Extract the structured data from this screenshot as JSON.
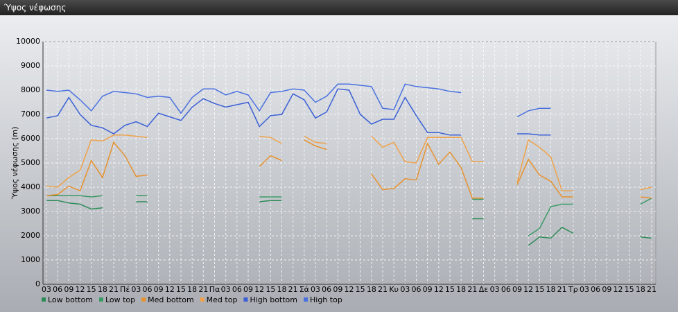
{
  "chart_data": {
    "type": "line",
    "title": "Ύψος νέφωσης",
    "y_label": "Ύψος νέφωσης (m)",
    "categories": [
      "03",
      "06",
      "09",
      "12",
      "15",
      "18",
      "21",
      "Πέ",
      "03",
      "06",
      "09",
      "12",
      "15",
      "18",
      "21",
      "Πα",
      "03",
      "06",
      "09",
      "12",
      "15",
      "18",
      "21",
      "Σά",
      "03",
      "06",
      "09",
      "12",
      "15",
      "18",
      "21",
      "Κυ",
      "03",
      "06",
      "09",
      "12",
      "15",
      "18",
      "21",
      "Δε",
      "03",
      "06",
      "09",
      "12",
      "15",
      "18",
      "21",
      "Τρ",
      "03",
      "06",
      "09",
      "12",
      "15",
      "18",
      "21"
    ],
    "ylim": [
      0,
      10000
    ],
    "yticks": [
      0,
      1000,
      2000,
      3000,
      4000,
      5000,
      6000,
      7000,
      8000,
      9000,
      10000
    ],
    "grid": true,
    "series": [
      {
        "name": "Low bottom",
        "color": "#2e8b57",
        "values": [
          3450,
          3450,
          3350,
          3300,
          3100,
          3150,
          null,
          null,
          3400,
          3400,
          null,
          null,
          null,
          null,
          null,
          null,
          null,
          null,
          null,
          3400,
          3450,
          3450,
          null,
          null,
          null,
          null,
          null,
          null,
          null,
          null,
          null,
          null,
          null,
          null,
          null,
          null,
          null,
          null,
          2700,
          2700,
          null,
          null,
          null,
          1600,
          1950,
          1900,
          2350,
          2100,
          null,
          null,
          null,
          null,
          null,
          1950,
          1900
        ]
      },
      {
        "name": "Low top",
        "color": "#3a9a66",
        "values": [
          3650,
          3650,
          3650,
          3650,
          3600,
          3650,
          null,
          null,
          3650,
          3650,
          null,
          null,
          null,
          null,
          null,
          null,
          null,
          null,
          null,
          3600,
          3600,
          3600,
          null,
          null,
          null,
          null,
          null,
          null,
          null,
          null,
          null,
          null,
          null,
          null,
          null,
          null,
          null,
          null,
          3500,
          3500,
          null,
          null,
          null,
          2000,
          2300,
          3200,
          3300,
          3300,
          null,
          null,
          null,
          null,
          null,
          3300,
          3550
        ]
      },
      {
        "name": "Med bottom",
        "color": "#e8912d",
        "values": [
          3650,
          3700,
          4050,
          3850,
          5100,
          4400,
          5850,
          5300,
          4450,
          4500,
          null,
          null,
          null,
          null,
          null,
          null,
          null,
          null,
          null,
          4850,
          5300,
          5100,
          null,
          5950,
          5700,
          5550,
          null,
          null,
          null,
          4550,
          3900,
          3950,
          4350,
          4300,
          5800,
          4950,
          5450,
          4800,
          3550,
          3550,
          null,
          null,
          4100,
          5150,
          4500,
          4250,
          3600,
          3600,
          null,
          null,
          null,
          null,
          null,
          3600,
          3550
        ]
      },
      {
        "name": "Med top",
        "color": "#f0a24a",
        "values": [
          4050,
          4000,
          4400,
          4700,
          5950,
          5900,
          6150,
          6150,
          6100,
          6050,
          null,
          null,
          null,
          null,
          null,
          null,
          null,
          null,
          null,
          6100,
          6050,
          5800,
          null,
          6100,
          5850,
          5800,
          null,
          null,
          null,
          6100,
          5650,
          5850,
          5050,
          5000,
          6050,
          6050,
          6050,
          6050,
          5050,
          5050,
          null,
          null,
          4200,
          5950,
          5650,
          5250,
          3850,
          3850,
          null,
          null,
          null,
          null,
          null,
          3900,
          4000
        ]
      },
      {
        "name": "High bottom",
        "color": "#3a5fd6",
        "values": [
          6850,
          6950,
          7700,
          7000,
          6550,
          6450,
          6200,
          6550,
          6700,
          6500,
          7050,
          6900,
          6750,
          7300,
          7650,
          7450,
          7300,
          7400,
          7500,
          6500,
          6950,
          7000,
          7850,
          7600,
          6850,
          7100,
          8050,
          8000,
          7000,
          6600,
          6800,
          6800,
          7700,
          6950,
          6250,
          6250,
          6150,
          6150,
          null,
          null,
          null,
          null,
          6200,
          6200,
          6150,
          6150,
          null,
          null,
          null,
          null,
          null,
          null,
          null,
          null,
          null
        ]
      },
      {
        "name": "High top",
        "color": "#4a70e0",
        "values": [
          8000,
          7950,
          8000,
          7600,
          7150,
          7750,
          7950,
          7900,
          7850,
          7700,
          7750,
          7700,
          7050,
          7700,
          8050,
          8050,
          7800,
          7950,
          7800,
          7150,
          7900,
          7950,
          8050,
          8000,
          7500,
          7750,
          8250,
          8250,
          8200,
          8150,
          7250,
          7200,
          8250,
          8150,
          8100,
          8050,
          7950,
          7900,
          null,
          null,
          null,
          null,
          6900,
          7150,
          7250,
          7250,
          null,
          null,
          null,
          null,
          null,
          null,
          null,
          null,
          null
        ]
      }
    ]
  }
}
